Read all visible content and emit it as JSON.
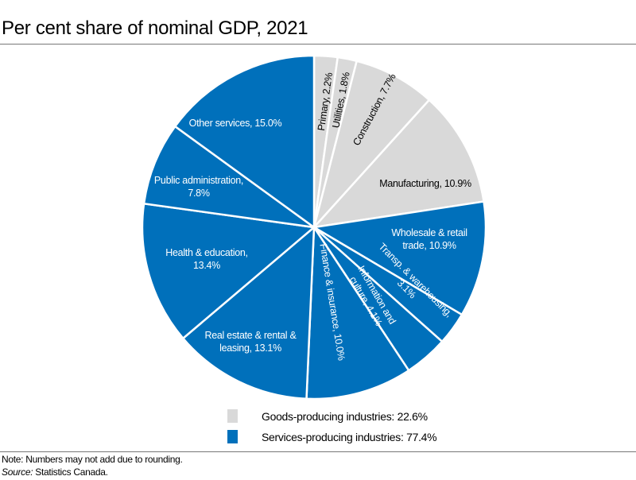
{
  "chart_data": {
    "type": "pie",
    "title": "Per cent share of nominal GDP, 2021",
    "start": "12 o'clock, clockwise",
    "slices": [
      {
        "label": [
          "Primary, 2.2%"
        ],
        "value": 2.2,
        "group": "goods"
      },
      {
        "label": [
          "Utilities, 1.8%"
        ],
        "value": 1.8,
        "group": "goods"
      },
      {
        "label": [
          "Construction, 7.7%"
        ],
        "value": 7.7,
        "group": "goods"
      },
      {
        "label": [
          "Manufacturing, 10.9%"
        ],
        "value": 10.9,
        "group": "goods"
      },
      {
        "label": [
          "Wholesale & retail",
          "trade, 10.9%"
        ],
        "value": 10.9,
        "group": "services"
      },
      {
        "label": [
          "Transp. & warehousing,",
          "3.1%"
        ],
        "value": 3.1,
        "group": "services"
      },
      {
        "label": [
          "Information and",
          "culture, 4.1%"
        ],
        "value": 4.1,
        "group": "services"
      },
      {
        "label": [
          "Finance & insurance, 10.0%"
        ],
        "value": 10.0,
        "group": "services"
      },
      {
        "label": [
          "Real estate & rental &",
          "leasing, 13.1%"
        ],
        "value": 13.1,
        "group": "services"
      },
      {
        "label": [
          "Health & education,",
          "13.4%"
        ],
        "value": 13.4,
        "group": "services"
      },
      {
        "label": [
          "Public administration,",
          "7.8%"
        ],
        "value": 7.8,
        "group": "services"
      },
      {
        "label": [
          "Other services, 15.0%"
        ],
        "value": 15.0,
        "group": "services"
      }
    ],
    "legend": [
      {
        "group": "goods",
        "label": "Goods-producing industries: 22.6%"
      },
      {
        "group": "services",
        "label": "Services-producing industries: 77.4%"
      }
    ],
    "colors": {
      "goods": "#D9D9D9",
      "services": "#0070BB",
      "goods_text": "#000000",
      "services_text": "#FFFFFF"
    }
  },
  "footer": {
    "note": "Note: Numbers may not add due to rounding.",
    "source_label": "Source:",
    "source_text": " Statistics Canada."
  }
}
